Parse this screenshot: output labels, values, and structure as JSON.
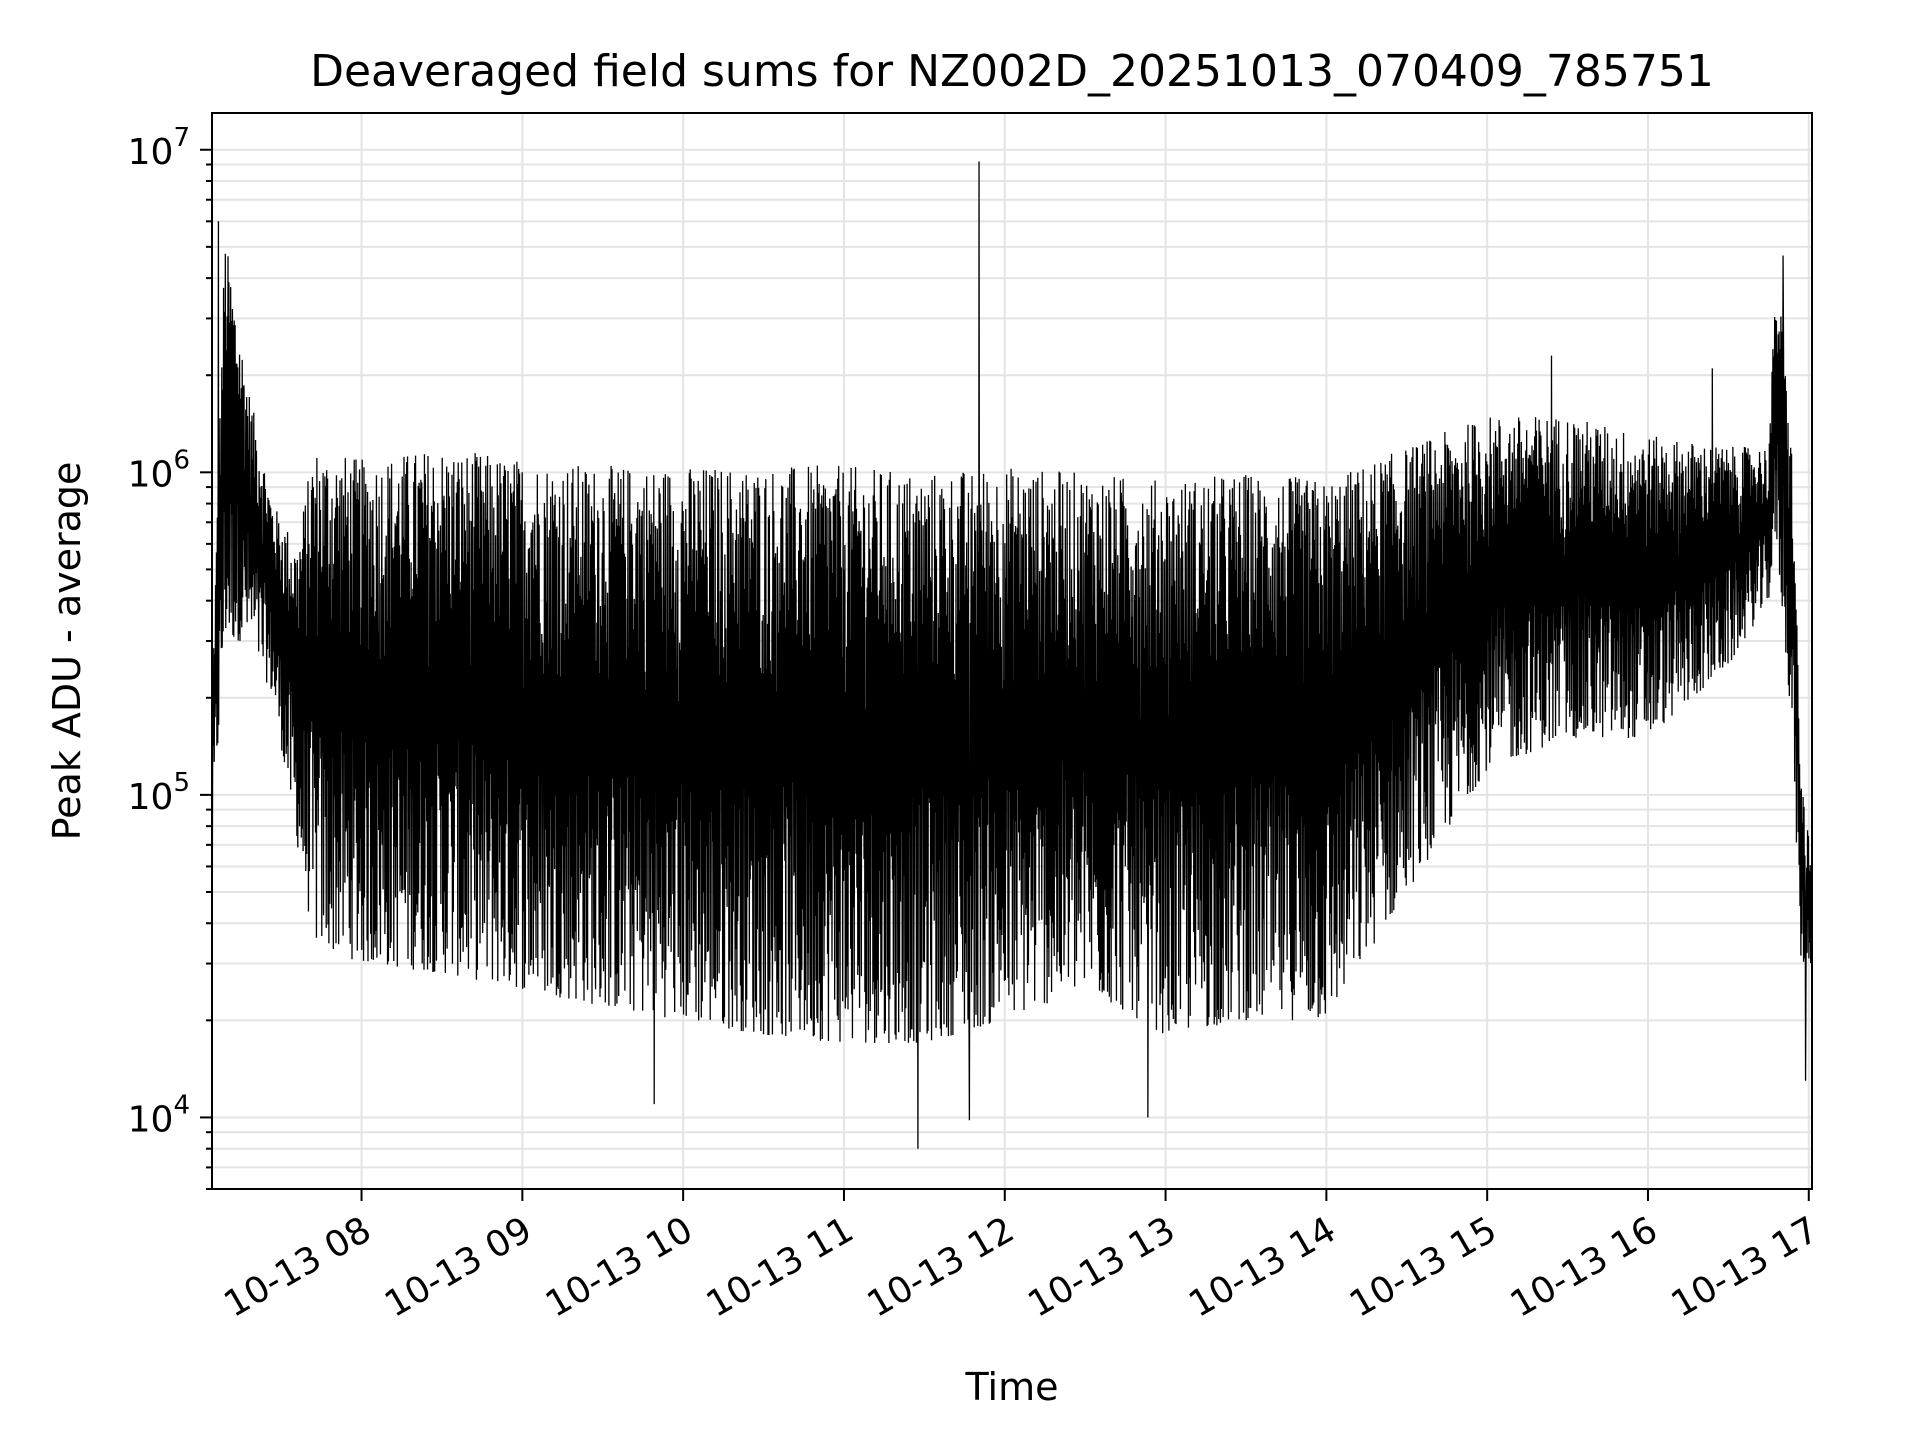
{
  "chart_data": {
    "type": "line",
    "title": "Deaveraged field sums for NZ002D_20251013_070409_785751",
    "xlabel": "Time",
    "ylabel": "Peak ADU - average",
    "yscale": "log",
    "ylim": [
      6000,
      13000000
    ],
    "xlim_hours": [
      7.07,
      17.02
    ],
    "grid": true,
    "x_ticks": [
      {
        "hour": 8,
        "label": "10-13 08"
      },
      {
        "hour": 9,
        "label": "10-13 09"
      },
      {
        "hour": 10,
        "label": "10-13 10"
      },
      {
        "hour": 11,
        "label": "10-13 11"
      },
      {
        "hour": 12,
        "label": "10-13 12"
      },
      {
        "hour": 13,
        "label": "10-13 13"
      },
      {
        "hour": 14,
        "label": "10-13 14"
      },
      {
        "hour": 15,
        "label": "10-13 15"
      },
      {
        "hour": 16,
        "label": "10-13 16"
      },
      {
        "hour": 17,
        "label": "10-13 17"
      }
    ],
    "y_ticks": [
      {
        "value": 10000,
        "base": "10",
        "exp": "4"
      },
      {
        "value": 100000,
        "base": "10",
        "exp": "5"
      },
      {
        "value": 1000000,
        "base": "10",
        "exp": "6"
      },
      {
        "value": 10000000,
        "base": "10",
        "exp": "7"
      }
    ],
    "series": [
      {
        "name": "field sums",
        "color": "#000000",
        "envelope": [
          {
            "hour": 7.07,
            "lo": 70000,
            "hi": 200000
          },
          {
            "hour": 7.15,
            "lo": 300000,
            "hi": 5500000
          },
          {
            "hour": 7.3,
            "lo": 300000,
            "hi": 1800000
          },
          {
            "hour": 7.45,
            "lo": 200000,
            "hi": 800000
          },
          {
            "hour": 7.6,
            "lo": 70000,
            "hi": 600000
          },
          {
            "hour": 7.7,
            "lo": 35000,
            "hi": 1200000
          },
          {
            "hour": 8.0,
            "lo": 30000,
            "hi": 1100000
          },
          {
            "hour": 8.5,
            "lo": 28000,
            "hi": 1200000
          },
          {
            "hour": 9.0,
            "lo": 25000,
            "hi": 1100000
          },
          {
            "hour": 9.5,
            "lo": 22000,
            "hi": 1050000
          },
          {
            "hour": 10.0,
            "lo": 20000,
            "hi": 1050000
          },
          {
            "hour": 10.5,
            "lo": 18000,
            "hi": 1050000
          },
          {
            "hour": 11.0,
            "lo": 17000,
            "hi": 1050000
          },
          {
            "hour": 11.5,
            "lo": 17000,
            "hi": 1000000
          },
          {
            "hour": 12.0,
            "lo": 20000,
            "hi": 1050000
          },
          {
            "hour": 12.5,
            "lo": 25000,
            "hi": 1000000
          },
          {
            "hour": 13.0,
            "lo": 18000,
            "hi": 950000
          },
          {
            "hour": 13.5,
            "lo": 20000,
            "hi": 1000000
          },
          {
            "hour": 14.0,
            "lo": 20000,
            "hi": 950000
          },
          {
            "hour": 14.5,
            "lo": 50000,
            "hi": 1200000
          },
          {
            "hour": 15.0,
            "lo": 120000,
            "hi": 1500000
          },
          {
            "hour": 15.5,
            "lo": 150000,
            "hi": 1500000
          },
          {
            "hour": 16.0,
            "lo": 150000,
            "hi": 1300000
          },
          {
            "hour": 16.5,
            "lo": 250000,
            "hi": 1200000
          },
          {
            "hour": 16.75,
            "lo": 400000,
            "hi": 1200000
          },
          {
            "hour": 16.8,
            "lo": 600000,
            "hi": 4500000
          },
          {
            "hour": 16.9,
            "lo": 150000,
            "hi": 1100000
          },
          {
            "hour": 16.95,
            "lo": 30000,
            "hi": 120000
          },
          {
            "hour": 17.02,
            "lo": 30000,
            "hi": 60000
          }
        ],
        "spikes": [
          {
            "hour": 11.84,
            "value": 9200000
          },
          {
            "hour": 7.11,
            "value": 6000000
          },
          {
            "hour": 16.84,
            "value": 4700000
          },
          {
            "hour": 15.4,
            "value": 2300000
          },
          {
            "hour": 16.4,
            "value": 2100000
          },
          {
            "hour": 7.07,
            "value": 18000
          },
          {
            "hour": 11.46,
            "value": 8000
          },
          {
            "hour": 12.89,
            "value": 10000
          },
          {
            "hour": 9.82,
            "value": 11000
          },
          {
            "hour": 16.98,
            "value": 13000
          },
          {
            "hour": 11.78,
            "value": 9800
          }
        ]
      }
    ]
  }
}
